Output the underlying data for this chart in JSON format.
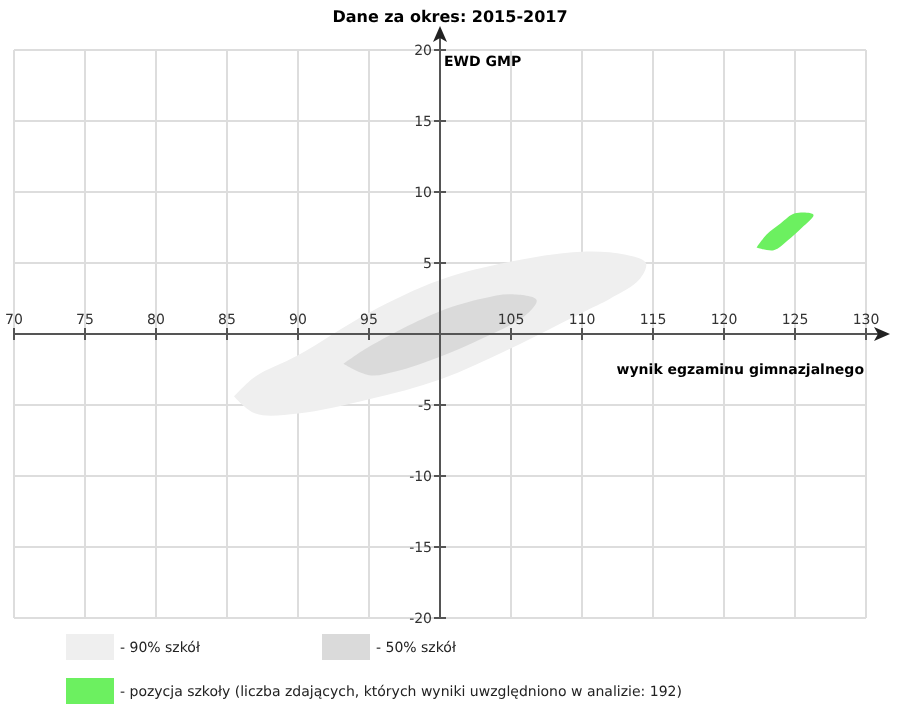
{
  "chart_data": {
    "type": "area",
    "title": "Dane za okres: 2015-2017",
    "xlabel": "wynik egzaminu gimnazjalnego",
    "ylabel": "EWD GMP",
    "xlim": [
      70,
      130
    ],
    "ylim": [
      -20,
      20
    ],
    "xticks": [
      70,
      75,
      80,
      85,
      90,
      95,
      {
        "value": 100,
        "label": null
      },
      105,
      110,
      115,
      120,
      125,
      130
    ],
    "yticks": [
      -20,
      -15,
      -10,
      -5,
      {
        "value": 0,
        "label": null
      },
      5,
      10,
      15,
      20
    ],
    "grid": true,
    "legend": "bottom",
    "series": [
      {
        "name": "- 90% szkół",
        "color": "#efefef",
        "x": [
          85.5,
          87,
          90,
          95,
          100,
          105,
          110,
          113,
          114.5,
          114,
          112,
          110,
          105,
          100,
          95,
          90,
          87,
          85.5
        ],
        "values": [
          -4.4,
          -3,
          -1.5,
          1.5,
          3.8,
          5.1,
          5.8,
          5.6,
          5,
          3.8,
          2.5,
          1.5,
          -1,
          -3.2,
          -4.6,
          -5.6,
          -5.6,
          -4.4
        ]
      },
      {
        "name": "- 50% szkół",
        "color": "#dadada",
        "x": [
          93.2,
          95,
          100,
          103,
          105,
          106.8,
          106,
          103,
          100,
          97,
          95,
          93.2
        ],
        "values": [
          -2.1,
          -0.9,
          1.6,
          2.5,
          2.8,
          2.4,
          1.3,
          -0.3,
          -1.6,
          -2.6,
          -2.9,
          -2.1
        ]
      },
      {
        "name": "- pozycja szkoły (liczba zdających, których wyniki uwzględniono w analizie: 192)",
        "color": "#6cf060",
        "x": [
          122.3,
          123,
          124,
          125,
          126.3,
          125.5,
          124.5,
          123.5,
          122.3
        ],
        "values": [
          6.1,
          7,
          7.8,
          8.5,
          8.4,
          7.5,
          6.6,
          5.9,
          6.1
        ]
      }
    ]
  }
}
